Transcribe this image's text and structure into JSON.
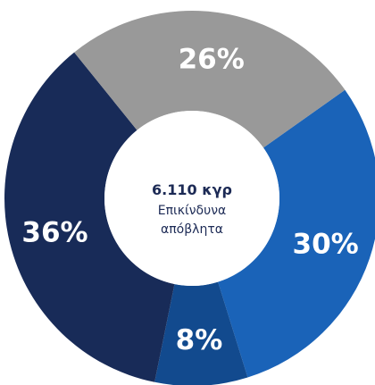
{
  "chart_data": {
    "type": "pie",
    "variant": "donut",
    "center": {
      "value": "6.110 κγρ",
      "caption_line1": "Επικίνδυνα",
      "caption_line2": "απόβλητα"
    },
    "slices": [
      {
        "label": "30%",
        "value": 30,
        "color": "#1a63b8"
      },
      {
        "label": "8%",
        "value": 8,
        "color": "#124a8e"
      },
      {
        "label": "36%",
        "value": 36,
        "color": "#182b58"
      },
      {
        "label": "26%",
        "value": 26,
        "color": "#999999"
      }
    ]
  }
}
